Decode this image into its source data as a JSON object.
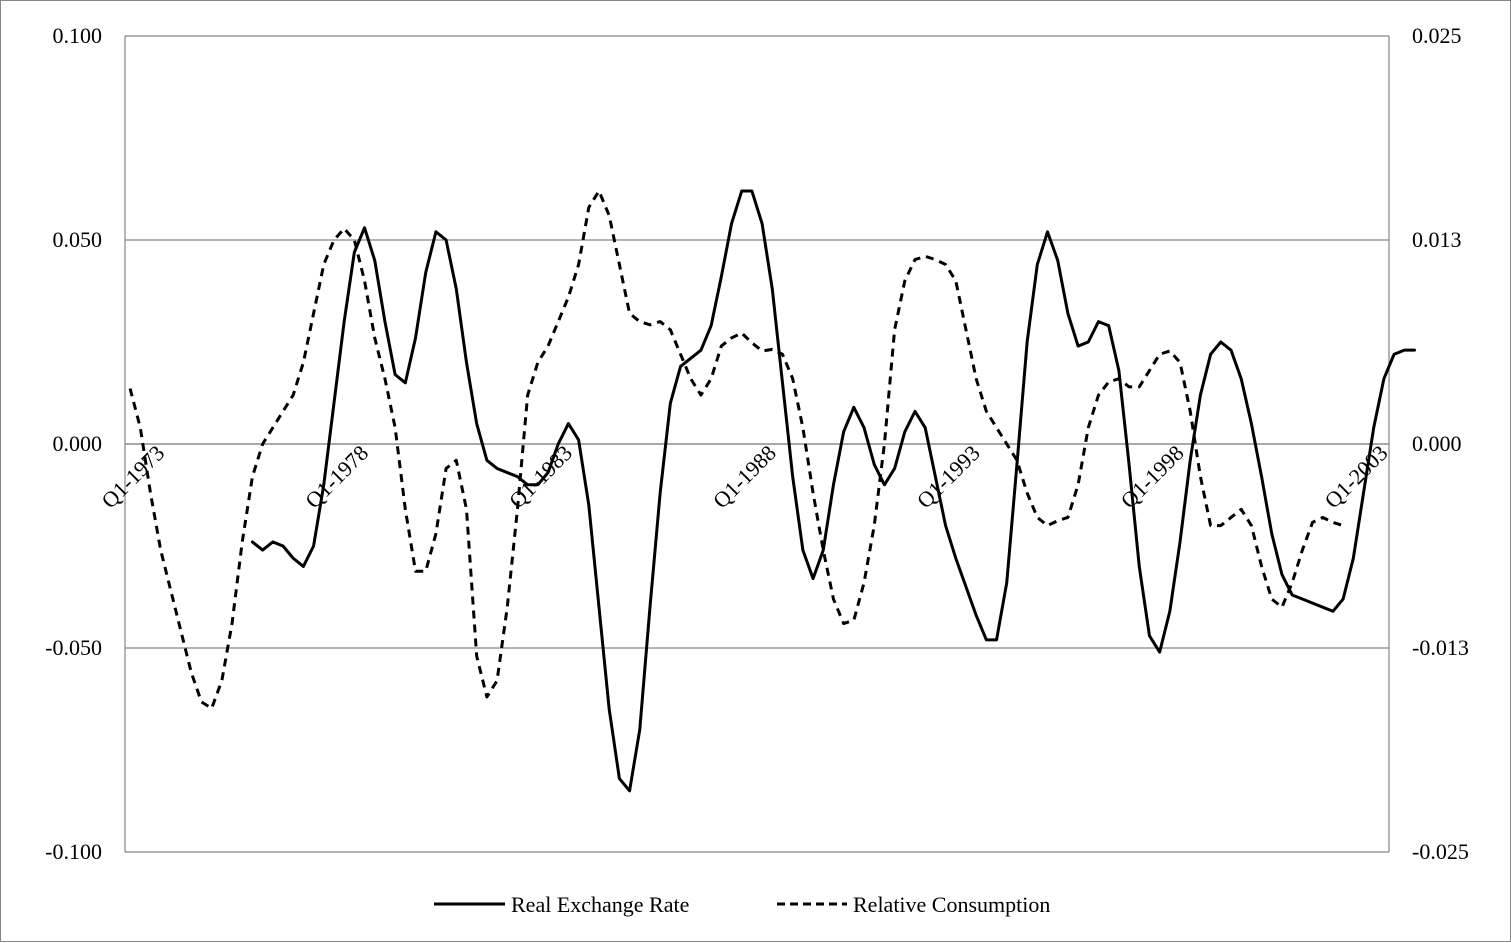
{
  "chart_data": {
    "type": "line",
    "title": "",
    "xlabel": "",
    "ylabel": "",
    "categories_shown": [
      "Q1-1973",
      "Q1-1978",
      "Q1-1983",
      "Q1-1988",
      "Q1-1993",
      "Q1-1998",
      "Q1-2003"
    ],
    "x_start": {
      "year": 1973,
      "quarter": 1
    },
    "y_left": {
      "min": -0.1,
      "max": 0.1,
      "ticks": [
        0.1,
        0.05,
        0.0,
        -0.05,
        -0.1
      ],
      "tick_labels": [
        "0.100",
        "0.050",
        "0.000",
        "-0.050",
        "-0.100"
      ]
    },
    "y_right": {
      "min": -0.025,
      "max": 0.025,
      "ticks": [
        0.025,
        0.0125,
        0.0,
        -0.0125,
        -0.025
      ],
      "tick_labels": [
        "0.025",
        "0.013",
        "0.000",
        "-0.013",
        "-0.025"
      ]
    },
    "grid": true,
    "legend_position": "bottom",
    "series": [
      {
        "name": "Real Exchange Rate",
        "axis": "left",
        "style": "solid",
        "color": "#000000",
        "start_index": 12,
        "values": [
          -0.024,
          -0.026,
          -0.024,
          -0.025,
          -0.028,
          -0.03,
          -0.025,
          -0.01,
          0.01,
          0.03,
          0.047,
          0.053,
          0.045,
          0.03,
          0.017,
          0.015,
          0.026,
          0.042,
          0.052,
          0.05,
          0.038,
          0.02,
          0.005,
          -0.004,
          -0.006,
          -0.007,
          -0.008,
          -0.01,
          -0.01,
          -0.007,
          0.0,
          0.005,
          0.001,
          -0.015,
          -0.04,
          -0.065,
          -0.082,
          -0.085,
          -0.07,
          -0.04,
          -0.012,
          0.01,
          0.019,
          0.021,
          0.023,
          0.029,
          0.041,
          0.054,
          0.062,
          0.062,
          0.054,
          0.038,
          0.015,
          -0.008,
          -0.026,
          -0.033,
          -0.026,
          -0.01,
          0.003,
          0.009,
          0.004,
          -0.005,
          -0.01,
          -0.006,
          0.003,
          0.008,
          0.004,
          -0.008,
          -0.02,
          -0.028,
          -0.035,
          -0.042,
          -0.048,
          -0.048,
          -0.034,
          -0.005,
          0.025,
          0.044,
          0.052,
          0.045,
          0.032,
          0.024,
          0.025,
          0.03,
          0.029,
          0.018,
          -0.005,
          -0.03,
          -0.047,
          -0.051,
          -0.041,
          -0.024,
          -0.004,
          0.012,
          0.022,
          0.025,
          0.023,
          0.016,
          0.005,
          -0.008,
          -0.022,
          -0.032,
          -0.037,
          -0.038,
          -0.039,
          -0.04,
          -0.041,
          -0.038,
          -0.028,
          -0.012,
          0.004,
          0.016,
          0.022,
          0.023,
          0.023
        ]
      },
      {
        "name": "Relative Consumption",
        "axis": "right",
        "style": "dashed",
        "color": "#000000",
        "start_index": 0,
        "values": [
          0.0034,
          0.001,
          -0.003,
          -0.0065,
          -0.009,
          -0.0115,
          -0.014,
          -0.0158,
          -0.0162,
          -0.0145,
          -0.011,
          -0.006,
          -0.002,
          0.0,
          0.001,
          0.002,
          0.003,
          0.005,
          0.008,
          0.011,
          0.0125,
          0.0132,
          0.0125,
          0.01,
          0.0065,
          0.004,
          0.001,
          -0.004,
          -0.0078,
          -0.0078,
          -0.0055,
          -0.0015,
          -0.001,
          -0.004,
          -0.013,
          -0.0155,
          -0.0145,
          -0.01,
          -0.004,
          0.003,
          0.005,
          0.006,
          0.0075,
          0.009,
          0.011,
          0.0145,
          0.0155,
          0.014,
          0.011,
          0.008,
          0.0075,
          0.0073,
          0.0075,
          0.007,
          0.0055,
          0.004,
          0.003,
          0.004,
          0.006,
          0.0065,
          0.0068,
          0.0062,
          0.0057,
          0.0058,
          0.0055,
          0.004,
          0.001,
          -0.003,
          -0.0065,
          -0.0095,
          -0.011,
          -0.0108,
          -0.0085,
          -0.005,
          0.0,
          0.007,
          0.01,
          0.0113,
          0.0115,
          0.0113,
          0.011,
          0.01,
          0.007,
          0.004,
          0.002,
          0.001,
          0.0,
          -0.001,
          -0.003,
          -0.0045,
          -0.005,
          -0.0047,
          -0.0045,
          -0.0025,
          0.001,
          0.003,
          0.0038,
          0.004,
          0.0035,
          0.0035,
          0.0045,
          0.0055,
          0.0057,
          0.005,
          0.002,
          -0.002,
          -0.005,
          -0.005,
          -0.0045,
          -0.004,
          -0.005,
          -0.0075,
          -0.0095,
          -0.01,
          -0.0085,
          -0.0065,
          -0.0048,
          -0.0045,
          -0.0048,
          -0.005
        ]
      }
    ]
  }
}
